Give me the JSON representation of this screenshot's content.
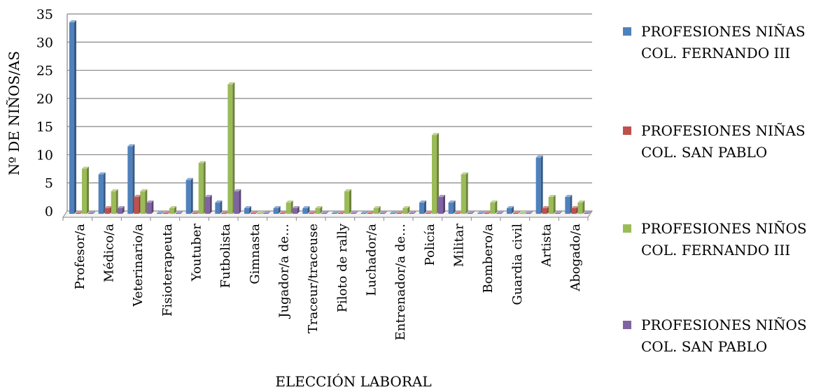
{
  "chart_data": {
    "type": "bar",
    "title": "",
    "xlabel": "ELECCIÓN LABORAL",
    "ylabel": "Nº DE NIÑOS/AS",
    "ylim": [
      0,
      35
    ],
    "yticks": [
      0,
      5,
      10,
      15,
      20,
      25,
      30,
      35
    ],
    "grid": true,
    "legend_position": "right",
    "categories": [
      "Profesor/a",
      "Médico/a",
      "Veterinario/a",
      "Fisioterapeuta",
      "Youtuber",
      "Futbolista",
      "Gimnasta",
      "Jugador/a de…",
      "Traceur/traceuse",
      "Piloto de rally",
      "Luchador/a",
      "Entrenador/a de…",
      "Policía",
      "Militar",
      "Bombero/a",
      "Guardia civil",
      "Artista",
      "Abogado/a"
    ],
    "series": [
      {
        "name": "PROFESIONES NIÑAS COL. FERNANDO III",
        "color": "#4F81BD",
        "values": [
          34,
          7,
          12,
          0,
          6,
          2,
          1,
          1,
          1,
          0,
          0,
          0,
          2,
          2,
          0,
          1,
          10,
          3
        ]
      },
      {
        "name": "PROFESIONES NIÑAS COL. SAN PABLO",
        "color": "#C0504D",
        "values": [
          0,
          1,
          3,
          0,
          0,
          0,
          0,
          0,
          0,
          0,
          0,
          0,
          0,
          0,
          0,
          0,
          1,
          1
        ]
      },
      {
        "name": "PROFESIONES NIÑOS COL. FERNANDO III",
        "color": "#9BBB59",
        "values": [
          8,
          4,
          4,
          1,
          9,
          23,
          0,
          2,
          1,
          4,
          1,
          1,
          14,
          7,
          2,
          0,
          3,
          2
        ]
      },
      {
        "name": "PROFESIONES NIÑOS COL. SAN PABLO",
        "color": "#8064A2",
        "values": [
          0,
          1,
          2,
          0,
          3,
          4,
          0,
          1,
          0,
          0,
          0,
          0,
          3,
          0,
          0,
          0,
          0,
          0
        ]
      }
    ]
  },
  "legend": {
    "items": [
      {
        "label": "PROFESIONES NIÑAS\nCOL. FERNANDO III",
        "color": "#4F81BD"
      },
      {
        "label": "PROFESIONES NIÑAS\nCOL. SAN PABLO",
        "color": "#C0504D"
      },
      {
        "label": "PROFESIONES NIÑOS\nCOL. FERNANDO III",
        "color": "#9BBB59"
      },
      {
        "label": "PROFESIONES NIÑOS\nCOL. SAN PABLO",
        "color": "#8064A2"
      }
    ]
  }
}
